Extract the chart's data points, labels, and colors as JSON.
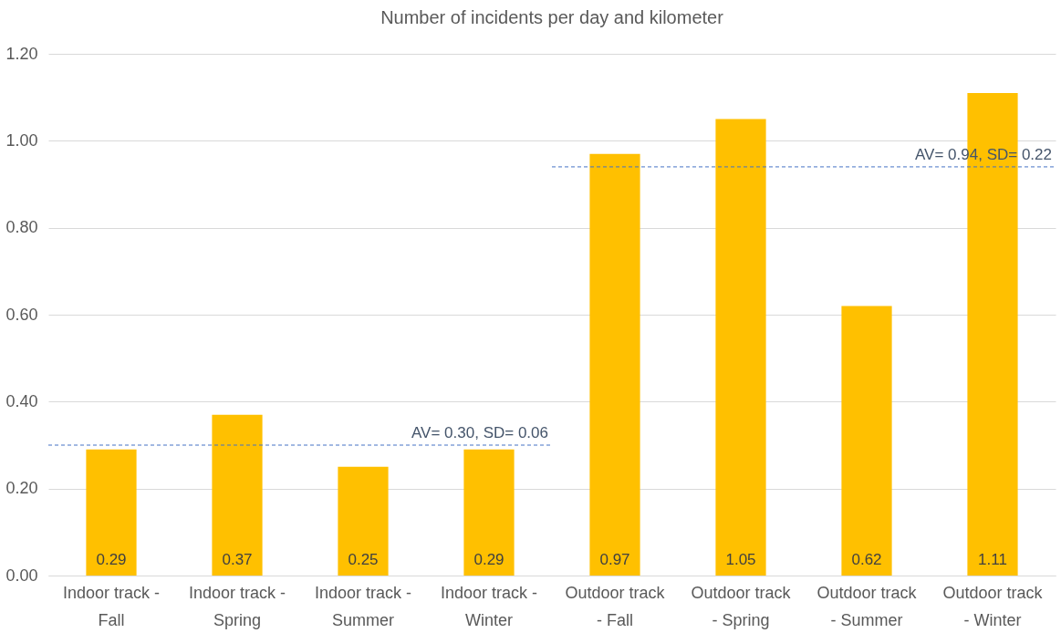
{
  "chart_data": {
    "type": "bar",
    "title": "Number of incidents per day and kilometer",
    "categories": [
      "Indoor track - Fall",
      "Indoor track - Spring",
      "Indoor track - Summer",
      "Indoor track - Winter",
      "Outdoor track - Fall",
      "Outdoor track - Spring",
      "Outdoor track - Summer",
      "Outdoor track - Winter"
    ],
    "values": [
      0.29,
      0.37,
      0.25,
      0.29,
      0.97,
      1.05,
      0.62,
      1.11
    ],
    "color": "#ffc000",
    "ylim": [
      0,
      1.2
    ],
    "yticks": [
      {
        "value": 0,
        "label": "0.00"
      },
      {
        "value": 0.2,
        "label": "0.20"
      },
      {
        "value": 0.4,
        "label": "0.40"
      },
      {
        "value": 0.6,
        "label": "0.60"
      },
      {
        "value": 0.8,
        "label": "0.80"
      },
      {
        "value": 1.0,
        "label": "1.00"
      },
      {
        "value": 1.2,
        "label": "1.20"
      }
    ],
    "grid": "y",
    "data_labels": true,
    "ref_lines": [
      {
        "axis": "y",
        "value": 0.3,
        "label": "AV= 0.30, SD= 0.06",
        "color": "#4472c4",
        "line_style": "dashed"
      },
      {
        "axis": "y",
        "value": 0.94,
        "label": "AV= 0.94, SD= 0.22",
        "color": "#4472c4",
        "line_style": "dashed"
      }
    ]
  }
}
